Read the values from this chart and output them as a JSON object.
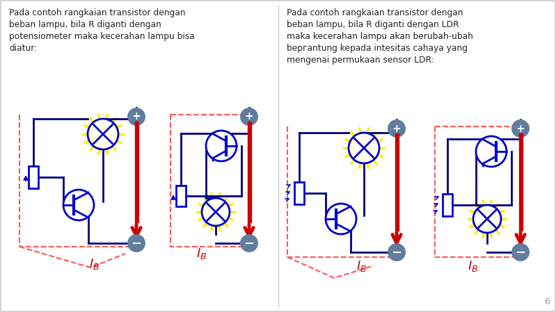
{
  "bg_color": "#e8e8e8",
  "slide_bg": "#ffffff",
  "blue": "#0000cc",
  "dark_blue": "#000080",
  "red": "#cc0000",
  "yellow": "#ffee00",
  "gray_circle": "#607d9e",
  "dashed_red": "#ff5555",
  "left_title": "Pada contoh rangkaian transistor dengan\nbeban lampu, bila R diganti dengan\npotensiometer maka kecerahan lampu bisa\ndiatur:",
  "right_title": "Pada contoh rangkaian transistor dengan\nbeban lampu, bila R diganti dengan LDR\nmaka kecerahan lampu akan berubah-ubah\nbергantung kepada intesitas cahaya yang\nmengenai permukaan sensor LDR:",
  "page_num": "6"
}
